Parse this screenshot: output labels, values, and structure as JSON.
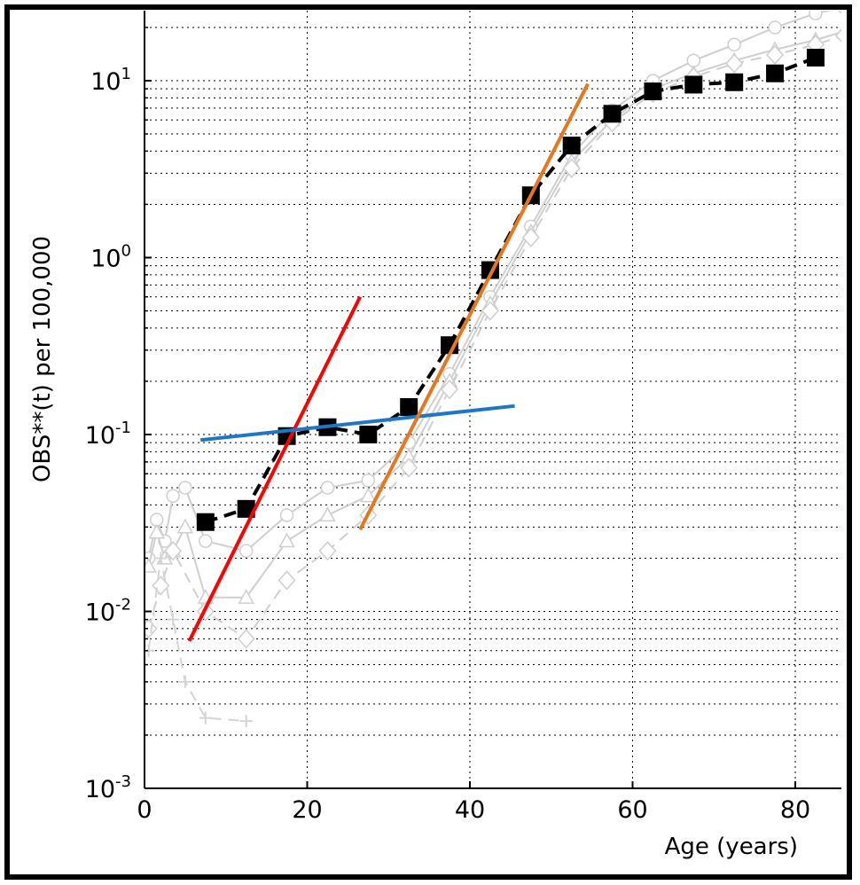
{
  "chart_data": {
    "type": "line",
    "xlabel": "Age (years)",
    "ylabel": "OBS**(t) per 100,000",
    "xlim": [
      0,
      86
    ],
    "ylim": [
      0.001,
      25
    ],
    "y_scale": "log",
    "grid": true,
    "x_ticks": [
      {
        "value": 0,
        "label": "0"
      },
      {
        "value": 20,
        "label": "20"
      },
      {
        "value": 40,
        "label": "40"
      },
      {
        "value": 60,
        "label": "60"
      },
      {
        "value": 80,
        "label": "80"
      }
    ],
    "y_ticks": [
      {
        "value": 0.001,
        "base": "10",
        "exp": "-3"
      },
      {
        "value": 0.01,
        "base": "10",
        "exp": "-2"
      },
      {
        "value": 0.1,
        "base": "10",
        "exp": "-1"
      },
      {
        "value": 1,
        "base": "10",
        "exp": "0"
      },
      {
        "value": 10,
        "base": "10",
        "exp": "1"
      }
    ],
    "series": [
      {
        "style": "black-dashed-square",
        "color": "#000000",
        "x": [
          7.5,
          12.5,
          17.5,
          22.5,
          27.5,
          32.5,
          37.5,
          42.5,
          47.5,
          52.5,
          57.5,
          62.5,
          67.5,
          72.5,
          77.5,
          82.5
        ],
        "y": [
          0.032,
          0.038,
          0.098,
          0.11,
          0.1,
          0.143,
          0.32,
          0.85,
          2.25,
          4.3,
          6.5,
          8.7,
          9.5,
          9.8,
          11.0,
          13.5
        ]
      },
      {
        "style": "gray-circle",
        "color": "#cfcfcf",
        "x": [
          0.5,
          1.5,
          2.5,
          3.5,
          5,
          7.5,
          12.5,
          17.5,
          22.5,
          27.5,
          32.5,
          37.5,
          42.5,
          47.5,
          52.5,
          57.5,
          62.5,
          67.5,
          72.5,
          77.5,
          82.5,
          86
        ],
        "y": [
          0.02,
          0.033,
          0.025,
          0.045,
          0.05,
          0.025,
          0.022,
          0.035,
          0.05,
          0.055,
          0.09,
          0.22,
          0.6,
          1.5,
          3.8,
          6.8,
          10.0,
          13.0,
          16.0,
          20.0,
          24.0,
          26.0
        ]
      },
      {
        "style": "gray-triangle",
        "color": "#cfcfcf",
        "x": [
          0.5,
          1.5,
          2.5,
          3.5,
          5,
          7.5,
          12.5,
          17.5,
          22.5,
          27.5,
          32.5,
          37.5,
          42.5,
          47.5,
          52.5,
          57.5,
          62.5,
          67.5,
          72.5,
          77.5,
          82.5,
          86
        ],
        "y": [
          0.018,
          0.028,
          0.02,
          0.022,
          0.03,
          0.012,
          0.012,
          0.025,
          0.035,
          0.045,
          0.075,
          0.2,
          0.55,
          1.4,
          3.5,
          6.0,
          9.0,
          11.0,
          13.0,
          15.0,
          17.0,
          19.0
        ]
      },
      {
        "style": "gray-diamond",
        "color": "#cfcfcf",
        "x": [
          0.5,
          2,
          3.5,
          7.5,
          12.5,
          17.5,
          22.5,
          27.5,
          32.5,
          37.5,
          42.5,
          47.5,
          52.5,
          57.5,
          62.5,
          67.5,
          72.5,
          77.5,
          82.5,
          86
        ],
        "y": [
          0.008,
          0.014,
          0.022,
          0.01,
          0.007,
          0.015,
          0.022,
          0.035,
          0.065,
          0.18,
          0.5,
          1.3,
          3.2,
          5.8,
          8.5,
          10.5,
          12.5,
          14.0,
          16.0,
          18.0
        ]
      },
      {
        "style": "gray-plus",
        "color": "#d4d4d4",
        "x": [
          0.5,
          2,
          3.5,
          5,
          7.5,
          12.5
        ],
        "y": [
          0.006,
          0.02,
          0.009,
          0.004,
          0.0025,
          0.0024
        ]
      }
    ],
    "fit_lines": [
      {
        "color": "#ff0000",
        "x": [
          5.5,
          26.5
        ],
        "y": [
          0.0068,
          0.6
        ]
      },
      {
        "color": "#1f77c4",
        "x": [
          6.9,
          45.5
        ],
        "y": [
          0.093,
          0.145
        ]
      },
      {
        "color": "#e8761c",
        "x": [
          26.5,
          54.5
        ],
        "y": [
          0.029,
          9.6
        ]
      }
    ]
  }
}
